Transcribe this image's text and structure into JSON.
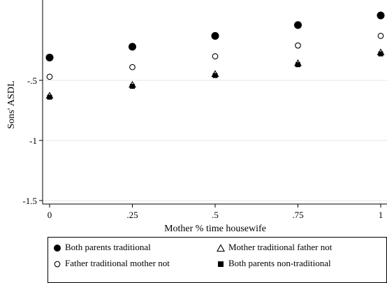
{
  "chart_data": {
    "type": "scatter",
    "title": "",
    "xlabel": "Mother % time housewife",
    "ylabel": "Sons' ASDL",
    "xlim": [
      0,
      1
    ],
    "ylim": [
      -1.5,
      0.0
    ],
    "x_ticks": [
      {
        "value": 0,
        "label": "0"
      },
      {
        "value": 0.25,
        "label": ".25"
      },
      {
        "value": 0.5,
        "label": ".5"
      },
      {
        "value": 0.75,
        "label": ".75"
      },
      {
        "value": 1,
        "label": "1"
      }
    ],
    "y_ticks": [
      {
        "value": -0.5,
        "label": "-.5"
      },
      {
        "value": -1,
        "label": "-1"
      },
      {
        "value": -1.5,
        "label": "-1.5"
      }
    ],
    "grid": true,
    "legend_position": "bottom",
    "series": [
      {
        "name": "Both parents traditional",
        "marker": "filled-circle",
        "color": "#000000",
        "x": [
          0,
          0.25,
          0.5,
          0.75,
          1
        ],
        "y": [
          -0.31,
          -0.22,
          -0.13,
          -0.04,
          0.04
        ]
      },
      {
        "name": "Father traditional mother not",
        "marker": "hollow-circle",
        "color": "#000000",
        "x": [
          0,
          0.25,
          0.5,
          0.75,
          1
        ],
        "y": [
          -0.47,
          -0.39,
          -0.3,
          -0.21,
          -0.13
        ]
      },
      {
        "name": "Mother traditional father not",
        "marker": "hollow-triangle",
        "color": "#000000",
        "x": [
          0,
          0.25,
          0.5,
          0.75,
          1
        ],
        "y": [
          -0.63,
          -0.54,
          -0.45,
          -0.36,
          -0.27
        ]
      },
      {
        "name": "Both parents non-traditional",
        "marker": "filled-square",
        "color": "#000000",
        "x": [
          0,
          0.25,
          0.5,
          0.75,
          1
        ],
        "y": [
          -0.64,
          -0.55,
          -0.46,
          -0.37,
          -0.28
        ]
      }
    ]
  },
  "legend": {
    "items": [
      "Both parents traditional",
      "Mother traditional father not",
      "Father traditional mother not",
      "Both parents non-traditional"
    ]
  }
}
